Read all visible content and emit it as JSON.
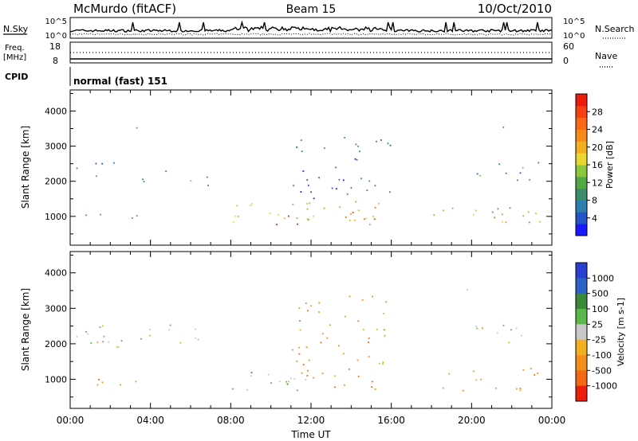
{
  "header": {
    "title": "McMurdo (fitACF)",
    "beam": "Beam 15",
    "date": "10/Oct/2010"
  },
  "panels": {
    "nsky_label": "N.Sky",
    "nsearch_label": "N.Search",
    "freq_label_line1": "Freq.",
    "freq_label_line2": "[MHz]",
    "nave_label": "Nave",
    "cpid_label": "CPID",
    "cpid_value": "normal (fast) 151",
    "nsky_ticks": [
      "10^5",
      "10^0"
    ],
    "nsearch_ticks": [
      "10^5",
      "10^0"
    ],
    "freq_ticks": [
      "18",
      "8"
    ],
    "nave_ticks": [
      "60",
      "0"
    ]
  },
  "chart_data": [
    {
      "type": "heatmap",
      "name": "power",
      "ylabel": "Slant Range [km]",
      "xlabel": "Time UT",
      "x_ticks": [
        "00:00",
        "04:00",
        "08:00",
        "12:00",
        "16:00",
        "20:00",
        "00:00"
      ],
      "x_range_hours": [
        0,
        24
      ],
      "y_ticks": [
        1000,
        2000,
        3000,
        4000
      ],
      "y_range_km": [
        180,
        4600
      ],
      "colorbar": {
        "label": "Power [dB]",
        "ticks": [
          4,
          8,
          12,
          16,
          20,
          24,
          28
        ],
        "range": [
          0,
          32
        ],
        "colors": [
          "#1a1aff",
          "#2455c8",
          "#2e7fb0",
          "#3a8f6a",
          "#52a842",
          "#8cc63a",
          "#e8d830",
          "#f4b020",
          "#f88a18",
          "#fa6a14",
          "#f84010",
          "#ee1a0c"
        ]
      },
      "regions": [
        {
          "t0": 0.3,
          "t1": 4.8,
          "r0": 1950,
          "r1": 2550,
          "level": 0.25
        },
        {
          "t0": 4.8,
          "t1": 7.6,
          "r0": 1900,
          "r1": 2250,
          "level": 0.3
        },
        {
          "t0": 0.3,
          "t1": 1.6,
          "r0": 800,
          "r1": 1150,
          "level": 0.4
        },
        {
          "t0": 2.2,
          "t1": 3.8,
          "r0": 800,
          "r1": 1050,
          "level": 0.3
        },
        {
          "t0": 7.8,
          "t1": 15.8,
          "r0": 700,
          "r1": 1400,
          "level": 0.55
        },
        {
          "t0": 9.0,
          "t1": 12.0,
          "r0": 700,
          "r1": 1050,
          "level": 0.95
        },
        {
          "t0": 12.0,
          "t1": 15.2,
          "r0": 900,
          "r1": 1500,
          "level": 0.75
        },
        {
          "t0": 18.0,
          "t1": 23.6,
          "r0": 750,
          "r1": 1300,
          "level": 0.5
        },
        {
          "t0": 20.5,
          "t1": 22.5,
          "r0": 850,
          "r1": 1150,
          "level": 0.7
        },
        {
          "t0": 19.5,
          "t1": 23.3,
          "r0": 2050,
          "r1": 2550,
          "level": 0.3
        },
        {
          "t0": 11.0,
          "t1": 16.0,
          "r0": 1500,
          "r1": 3400,
          "level": 0.2
        },
        {
          "t0": 0.0,
          "t1": 24.0,
          "r0": 3520,
          "r1": 3560,
          "level": 0.3
        }
      ]
    },
    {
      "type": "heatmap",
      "name": "velocity",
      "ylabel": "Slant Range [km]",
      "xlabel": "Time UT",
      "x_ticks": [
        "00:00",
        "04:00",
        "08:00",
        "12:00",
        "16:00",
        "20:00",
        "00:00"
      ],
      "x_range_hours": [
        0,
        24
      ],
      "y_ticks": [
        1000,
        2000,
        3000,
        4000
      ],
      "y_range_km": [
        180,
        4600
      ],
      "colorbar": {
        "label": "Velocity [m s-1]",
        "ticks": [
          "1000",
          "500",
          "100",
          "25",
          "-25",
          "-100",
          "-500",
          "-1000"
        ],
        "colors": [
          "#2a3fd0",
          "#2a62c8",
          "#3a8a3a",
          "#5ab84a",
          "#c8c8c8",
          "#f0b020",
          "#f4901a",
          "#f46a14",
          "#ee1e0c"
        ]
      },
      "regions": [
        {
          "t0": 0.3,
          "t1": 7.6,
          "r0": 1900,
          "r1": 2550,
          "cls": "grey"
        },
        {
          "t0": 0.3,
          "t1": 1.6,
          "r0": 800,
          "r1": 1150,
          "cls": "orange"
        },
        {
          "t0": 2.2,
          "t1": 3.8,
          "r0": 800,
          "r1": 1050,
          "cls": "orange"
        },
        {
          "t0": 7.8,
          "t1": 11.0,
          "r0": 600,
          "r1": 1300,
          "cls": "green"
        },
        {
          "t0": 9.5,
          "t1": 12.0,
          "r0": 600,
          "r1": 1100,
          "cls": "grey"
        },
        {
          "t0": 11.5,
          "t1": 15.6,
          "r0": 650,
          "r1": 1650,
          "cls": "orange"
        },
        {
          "t0": 18.2,
          "t1": 23.6,
          "r0": 700,
          "r1": 1350,
          "cls": "orange"
        },
        {
          "t0": 19.5,
          "t1": 23.3,
          "r0": 2050,
          "r1": 2550,
          "cls": "grey"
        },
        {
          "t0": 11.0,
          "t1": 16.0,
          "r0": 1500,
          "r1": 3400,
          "cls": "orange"
        },
        {
          "t0": 0.0,
          "t1": 24.0,
          "r0": 3520,
          "r1": 3560,
          "cls": "grey"
        }
      ]
    }
  ]
}
